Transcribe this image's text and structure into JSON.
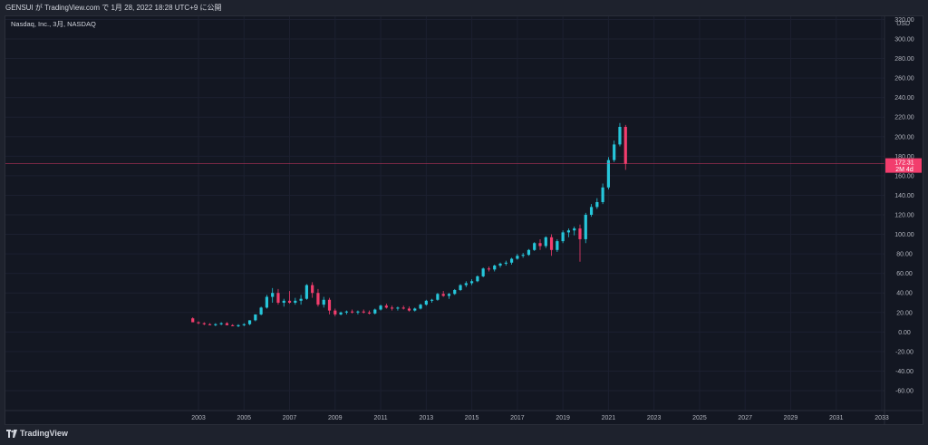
{
  "header": {
    "caption": "GENSUI が TradingView.com で 1月 28, 2022 18:28 UTC+9 に公開"
  },
  "footer": {
    "brand": "TradingView"
  },
  "colors": {
    "up": "#26c6da",
    "down": "#f23d6d",
    "background": "#131722",
    "grid": "#1c2030",
    "price_line": "#f23d6d"
  },
  "chart_data": {
    "type": "candlestick",
    "symbol_label": "Nasdaq, Inc., 3月, NASDAQ",
    "currency": "USD",
    "interval": "3M",
    "x_ticks": [
      "2003",
      "2005",
      "2007",
      "2009",
      "2011",
      "2013",
      "2015",
      "2017",
      "2019",
      "2021",
      "2023",
      "2025",
      "2027",
      "2029",
      "2031",
      "2033"
    ],
    "y_ticks": [
      320,
      300,
      280,
      260,
      240,
      220,
      200,
      180,
      160,
      140,
      120,
      100,
      80,
      60,
      40,
      20,
      0,
      -20,
      -40,
      -60
    ],
    "ylim": [
      -80,
      320
    ],
    "xlim": [
      2002.0,
      2034.0
    ],
    "last_price": "172.31",
    "last_price_value": 172.31,
    "countdown": "2M 4d",
    "candles": [
      {
        "t": 2002.75,
        "o": 14,
        "h": 15,
        "l": 10,
        "c": 10
      },
      {
        "t": 2003.0,
        "o": 10,
        "h": 11,
        "l": 8,
        "c": 9
      },
      {
        "t": 2003.25,
        "o": 9,
        "h": 10,
        "l": 7,
        "c": 8
      },
      {
        "t": 2003.5,
        "o": 8,
        "h": 9,
        "l": 7,
        "c": 7
      },
      {
        "t": 2003.75,
        "o": 7,
        "h": 9,
        "l": 6,
        "c": 8
      },
      {
        "t": 2004.0,
        "o": 8,
        "h": 10,
        "l": 7,
        "c": 9
      },
      {
        "t": 2004.25,
        "o": 9,
        "h": 10,
        "l": 7,
        "c": 7
      },
      {
        "t": 2004.5,
        "o": 7,
        "h": 8,
        "l": 6,
        "c": 6
      },
      {
        "t": 2004.75,
        "o": 6,
        "h": 8,
        "l": 5,
        "c": 7
      },
      {
        "t": 2005.0,
        "o": 7,
        "h": 9,
        "l": 6,
        "c": 8
      },
      {
        "t": 2005.25,
        "o": 8,
        "h": 12,
        "l": 7,
        "c": 12
      },
      {
        "t": 2005.5,
        "o": 12,
        "h": 18,
        "l": 11,
        "c": 18
      },
      {
        "t": 2005.75,
        "o": 18,
        "h": 26,
        "l": 17,
        "c": 25
      },
      {
        "t": 2006.0,
        "o": 25,
        "h": 38,
        "l": 24,
        "c": 36
      },
      {
        "t": 2006.25,
        "o": 36,
        "h": 45,
        "l": 30,
        "c": 40
      },
      {
        "t": 2006.5,
        "o": 40,
        "h": 44,
        "l": 28,
        "c": 30
      },
      {
        "t": 2006.75,
        "o": 30,
        "h": 34,
        "l": 26,
        "c": 32
      },
      {
        "t": 2007.0,
        "o": 32,
        "h": 42,
        "l": 29,
        "c": 30
      },
      {
        "t": 2007.25,
        "o": 30,
        "h": 35,
        "l": 28,
        "c": 32
      },
      {
        "t": 2007.5,
        "o": 32,
        "h": 38,
        "l": 28,
        "c": 34
      },
      {
        "t": 2007.75,
        "o": 34,
        "h": 49,
        "l": 33,
        "c": 48
      },
      {
        "t": 2008.0,
        "o": 48,
        "h": 51,
        "l": 35,
        "c": 40
      },
      {
        "t": 2008.25,
        "o": 40,
        "h": 44,
        "l": 26,
        "c": 28
      },
      {
        "t": 2008.5,
        "o": 28,
        "h": 36,
        "l": 25,
        "c": 33
      },
      {
        "t": 2008.75,
        "o": 33,
        "h": 35,
        "l": 18,
        "c": 22
      },
      {
        "t": 2009.0,
        "o": 22,
        "h": 24,
        "l": 16,
        "c": 18
      },
      {
        "t": 2009.25,
        "o": 18,
        "h": 21,
        "l": 17,
        "c": 20
      },
      {
        "t": 2009.5,
        "o": 20,
        "h": 22,
        "l": 18,
        "c": 21
      },
      {
        "t": 2009.75,
        "o": 21,
        "h": 23,
        "l": 19,
        "c": 20
      },
      {
        "t": 2010.0,
        "o": 20,
        "h": 22,
        "l": 18,
        "c": 21
      },
      {
        "t": 2010.25,
        "o": 21,
        "h": 23,
        "l": 19,
        "c": 20
      },
      {
        "t": 2010.5,
        "o": 20,
        "h": 22,
        "l": 18,
        "c": 19
      },
      {
        "t": 2010.75,
        "o": 19,
        "h": 24,
        "l": 18,
        "c": 23
      },
      {
        "t": 2011.0,
        "o": 23,
        "h": 28,
        "l": 22,
        "c": 27
      },
      {
        "t": 2011.25,
        "o": 27,
        "h": 29,
        "l": 24,
        "c": 25
      },
      {
        "t": 2011.5,
        "o": 25,
        "h": 27,
        "l": 22,
        "c": 24
      },
      {
        "t": 2011.75,
        "o": 24,
        "h": 26,
        "l": 22,
        "c": 25
      },
      {
        "t": 2012.0,
        "o": 25,
        "h": 27,
        "l": 23,
        "c": 24
      },
      {
        "t": 2012.25,
        "o": 24,
        "h": 26,
        "l": 21,
        "c": 22
      },
      {
        "t": 2012.5,
        "o": 22,
        "h": 25,
        "l": 21,
        "c": 24
      },
      {
        "t": 2012.75,
        "o": 24,
        "h": 29,
        "l": 23,
        "c": 28
      },
      {
        "t": 2013.0,
        "o": 28,
        "h": 33,
        "l": 27,
        "c": 32
      },
      {
        "t": 2013.25,
        "o": 32,
        "h": 34,
        "l": 30,
        "c": 33
      },
      {
        "t": 2013.5,
        "o": 33,
        "h": 40,
        "l": 32,
        "c": 39
      },
      {
        "t": 2013.75,
        "o": 39,
        "h": 42,
        "l": 36,
        "c": 37
      },
      {
        "t": 2014.0,
        "o": 37,
        "h": 40,
        "l": 34,
        "c": 39
      },
      {
        "t": 2014.25,
        "o": 39,
        "h": 44,
        "l": 38,
        "c": 43
      },
      {
        "t": 2014.5,
        "o": 43,
        "h": 49,
        "l": 42,
        "c": 48
      },
      {
        "t": 2014.75,
        "o": 48,
        "h": 52,
        "l": 46,
        "c": 50
      },
      {
        "t": 2015.0,
        "o": 50,
        "h": 54,
        "l": 48,
        "c": 52
      },
      {
        "t": 2015.25,
        "o": 52,
        "h": 58,
        "l": 51,
        "c": 57
      },
      {
        "t": 2015.5,
        "o": 57,
        "h": 66,
        "l": 56,
        "c": 65
      },
      {
        "t": 2015.75,
        "o": 65,
        "h": 67,
        "l": 62,
        "c": 64
      },
      {
        "t": 2016.0,
        "o": 64,
        "h": 69,
        "l": 62,
        "c": 68
      },
      {
        "t": 2016.25,
        "o": 68,
        "h": 71,
        "l": 66,
        "c": 70
      },
      {
        "t": 2016.5,
        "o": 70,
        "h": 73,
        "l": 68,
        "c": 71
      },
      {
        "t": 2016.75,
        "o": 71,
        "h": 76,
        "l": 69,
        "c": 75
      },
      {
        "t": 2017.0,
        "o": 75,
        "h": 80,
        "l": 74,
        "c": 78
      },
      {
        "t": 2017.25,
        "o": 78,
        "h": 81,
        "l": 76,
        "c": 79
      },
      {
        "t": 2017.5,
        "o": 79,
        "h": 85,
        "l": 78,
        "c": 84
      },
      {
        "t": 2017.75,
        "o": 84,
        "h": 92,
        "l": 83,
        "c": 91
      },
      {
        "t": 2018.0,
        "o": 91,
        "h": 95,
        "l": 84,
        "c": 88
      },
      {
        "t": 2018.25,
        "o": 88,
        "h": 98,
        "l": 86,
        "c": 97
      },
      {
        "t": 2018.5,
        "o": 97,
        "h": 100,
        "l": 78,
        "c": 84
      },
      {
        "t": 2018.75,
        "o": 84,
        "h": 95,
        "l": 82,
        "c": 93
      },
      {
        "t": 2019.0,
        "o": 93,
        "h": 104,
        "l": 91,
        "c": 102
      },
      {
        "t": 2019.25,
        "o": 102,
        "h": 106,
        "l": 97,
        "c": 104
      },
      {
        "t": 2019.5,
        "o": 104,
        "h": 108,
        "l": 99,
        "c": 106
      },
      {
        "t": 2019.75,
        "o": 106,
        "h": 110,
        "l": 72,
        "c": 95
      },
      {
        "t": 2020.0,
        "o": 95,
        "h": 122,
        "l": 91,
        "c": 120
      },
      {
        "t": 2020.25,
        "o": 120,
        "h": 131,
        "l": 118,
        "c": 128
      },
      {
        "t": 2020.5,
        "o": 128,
        "h": 137,
        "l": 126,
        "c": 133
      },
      {
        "t": 2020.75,
        "o": 133,
        "h": 152,
        "l": 131,
        "c": 148
      },
      {
        "t": 2021.0,
        "o": 148,
        "h": 179,
        "l": 146,
        "c": 176
      },
      {
        "t": 2021.25,
        "o": 176,
        "h": 196,
        "l": 174,
        "c": 192
      },
      {
        "t": 2021.5,
        "o": 192,
        "h": 214,
        "l": 190,
        "c": 210
      },
      {
        "t": 2021.75,
        "o": 210,
        "h": 212,
        "l": 166,
        "c": 172.31
      }
    ]
  }
}
